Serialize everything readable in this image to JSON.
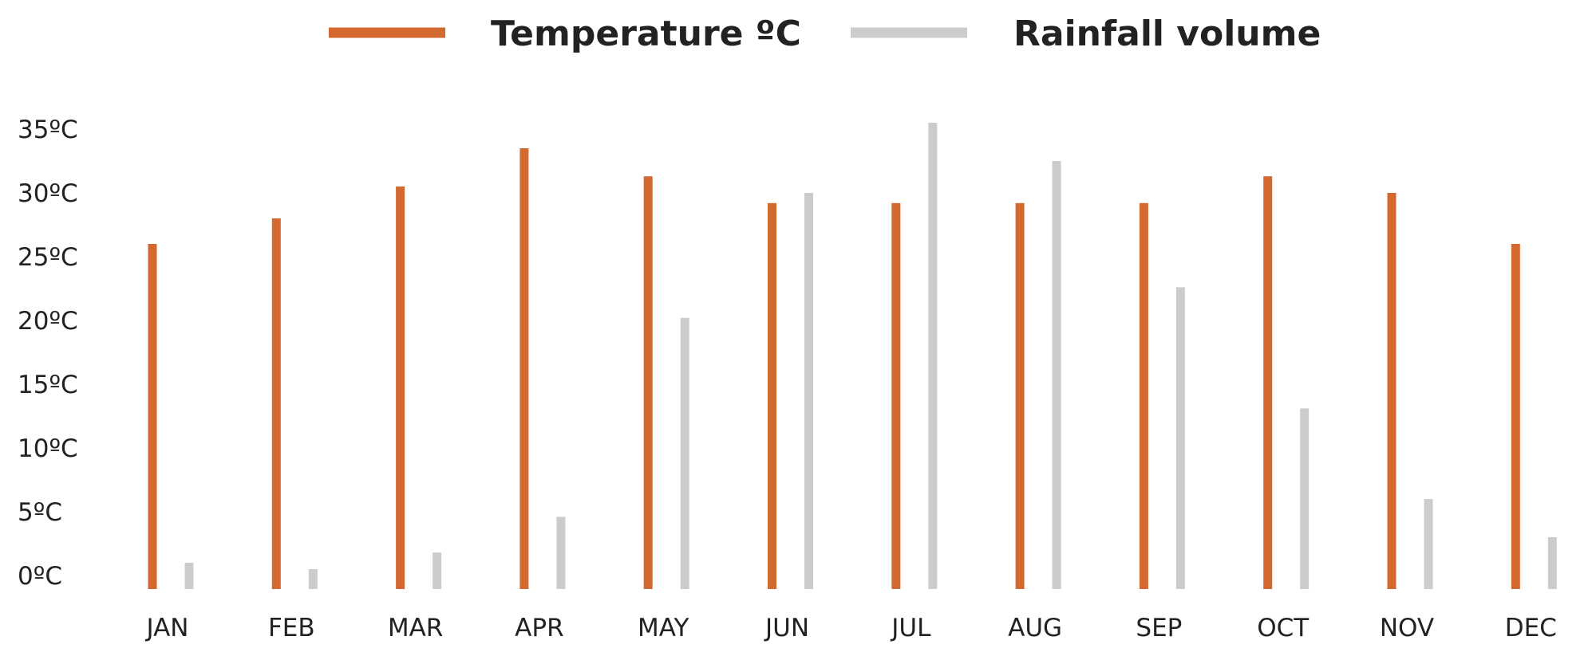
{
  "chart_data": {
    "type": "bar",
    "categories": [
      "JAN",
      "FEB",
      "MAR",
      "APR",
      "MAY",
      "JUN",
      "JUL",
      "AUG",
      "SEP",
      "OCT",
      "NOV",
      "DEC"
    ],
    "series": [
      {
        "name": "Temperature ºC",
        "color": "#d4692f",
        "values": [
          26,
          28,
          30.5,
          33.5,
          31.3,
          29.2,
          29.2,
          29.2,
          29.2,
          31.3,
          30,
          26
        ]
      },
      {
        "name": "Rainfall volume",
        "color": "#cccccc",
        "values": [
          1,
          0.5,
          1.8,
          4.6,
          20.2,
          30,
          35.5,
          32.5,
          22.6,
          13.1,
          6,
          3
        ]
      }
    ],
    "yticks": [
      "0ºC",
      "5ºC",
      "10ºC",
      "15ºC",
      "20ºC",
      "25ºC",
      "30ºC",
      "35ºC"
    ],
    "ylim": [
      -1,
      36
    ],
    "legend_position": "top-center",
    "grid": false
  }
}
